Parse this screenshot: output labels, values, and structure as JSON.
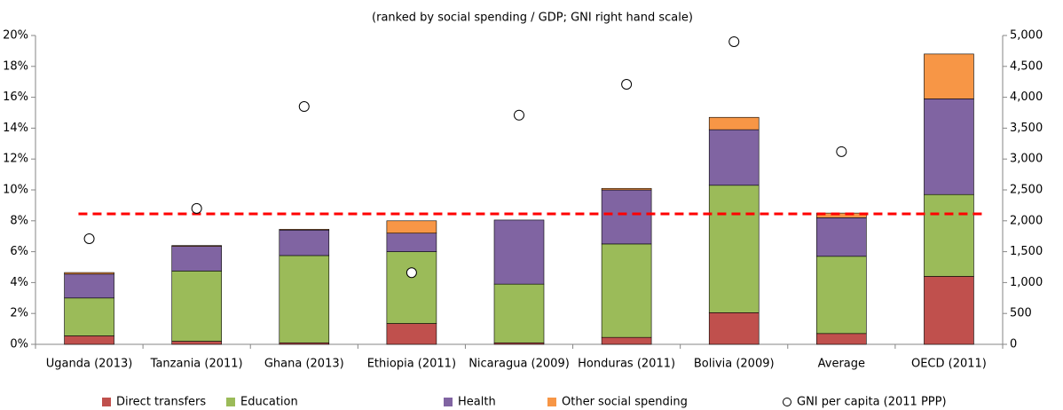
{
  "chart_data": {
    "type": "bar",
    "stacked": true,
    "title": "(ranked by social spending / GDP; GNI right hand scale)",
    "categories": [
      "Uganda (2013)",
      "Tanzania (2011)",
      "Ghana (2013)",
      "Ethiopia (2011)",
      "Nicaragua (2009)",
      "Honduras (2011)",
      "Bolivia (2009)",
      "Average",
      "OECD (2011)"
    ],
    "series": [
      {
        "name": "Direct transfers",
        "color": "#c0504d",
        "values": [
          0.55,
          0.2,
          0.1,
          1.35,
          0.1,
          0.45,
          2.05,
          0.7,
          4.4
        ]
      },
      {
        "name": "Education",
        "color": "#9bbb59",
        "values": [
          2.45,
          4.55,
          5.65,
          4.65,
          3.8,
          6.05,
          8.25,
          5.0,
          5.3
        ]
      },
      {
        "name": "Health",
        "color": "#8064a2",
        "values": [
          1.55,
          1.6,
          1.65,
          1.2,
          4.15,
          3.5,
          3.6,
          2.5,
          6.2
        ]
      },
      {
        "name": "Other social spending",
        "color": "#f79646",
        "values": [
          0.1,
          0.05,
          0.05,
          0.8,
          0.0,
          0.1,
          0.8,
          0.3,
          2.9
        ]
      },
      {
        "name": "GNI per capita (2011 PPP)",
        "type": "scatter",
        "axis": "y2",
        "color": "#ffffff",
        "values": [
          1710,
          2200,
          3850,
          1160,
          3710,
          4210,
          4900,
          3120,
          null
        ]
      }
    ],
    "reference_line": {
      "value": 8.45,
      "color": "#ff0000"
    },
    "ylim": [
      0,
      20
    ],
    "yticks": [
      {
        "value": 0,
        "label": "0%"
      },
      {
        "value": 2,
        "label": "2%"
      },
      {
        "value": 4,
        "label": "4%"
      },
      {
        "value": 6,
        "label": "6%"
      },
      {
        "value": 8,
        "label": "8%"
      },
      {
        "value": 10,
        "label": "10%"
      },
      {
        "value": 12,
        "label": "12%"
      },
      {
        "value": 14,
        "label": "14%"
      },
      {
        "value": 16,
        "label": "16%"
      },
      {
        "value": 18,
        "label": "18%"
      },
      {
        "value": 20,
        "label": "20%"
      }
    ],
    "y2lim": [
      0,
      5000
    ],
    "y2ticks": [
      0,
      500,
      {
        "value": 1000,
        "label": "1,000"
      },
      {
        "value": 1500,
        "label": "1,500"
      },
      {
        "value": 2000,
        "label": "2,000"
      },
      {
        "value": 2500,
        "label": "2,500"
      },
      {
        "value": 3000,
        "label": "3,000"
      },
      {
        "value": 3500,
        "label": "3,500"
      },
      {
        "value": 4000,
        "label": "4,000"
      },
      {
        "value": 4500,
        "label": "4,500"
      },
      {
        "value": 5000,
        "label": "5,000"
      }
    ],
    "grid": false,
    "legend": "bottom"
  }
}
